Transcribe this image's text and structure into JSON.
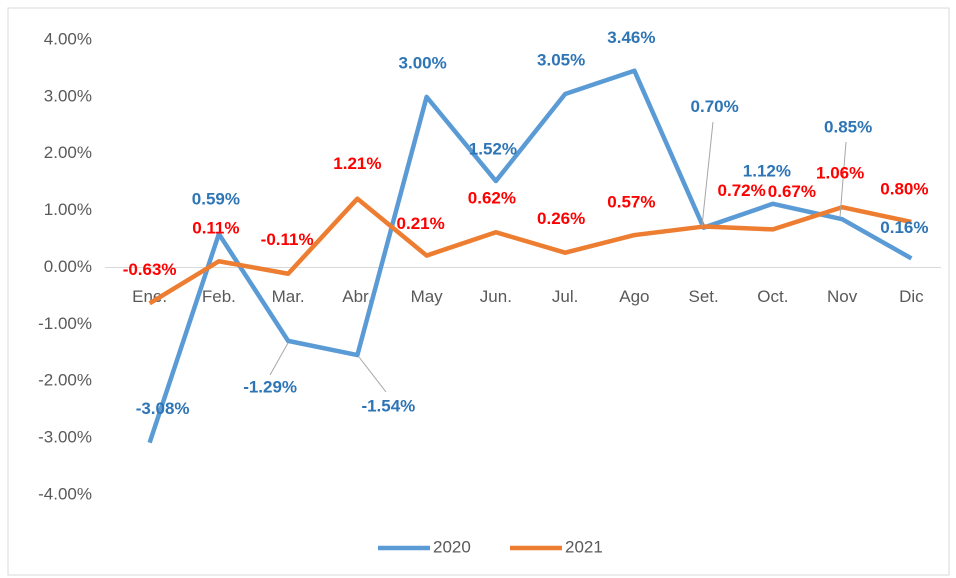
{
  "chart_data": {
    "type": "line",
    "categories": [
      "Ene.",
      "Feb.",
      "Mar.",
      "Abr.",
      "May",
      "Jun.",
      "Jul.",
      "Ago",
      "Set.",
      "Oct.",
      "Nov",
      "Dic"
    ],
    "series": [
      {
        "name": "2020",
        "color": "#5b9bd5",
        "label_color": "#2e75b6",
        "values": [
          -3.08,
          0.59,
          -1.29,
          -1.54,
          3.0,
          1.52,
          3.05,
          3.46,
          0.7,
          1.12,
          0.85,
          0.16
        ],
        "value_labels": [
          "-3.08%",
          "0.59%",
          "-1.29%",
          "-1.54%",
          "3.00%",
          "1.52%",
          "3.05%",
          "3.46%",
          "0.70%",
          "1.12%",
          "0.85%",
          "0.16%"
        ]
      },
      {
        "name": "2021",
        "color": "#ed7d31",
        "label_color": "#ff0000",
        "values": [
          -0.63,
          0.11,
          -0.11,
          1.21,
          0.21,
          0.62,
          0.26,
          0.57,
          0.72,
          0.67,
          1.06,
          0.8
        ],
        "value_labels": [
          "-0.63%",
          "0.11%",
          "-0.11%",
          "1.21%",
          "0.21%",
          "0.62%",
          "0.26%",
          "0.57%",
          "0.72%",
          "0.67%",
          "1.06%",
          "0.80%"
        ]
      }
    ],
    "ylim": [
      -4,
      4
    ],
    "yticks": [
      {
        "value": 4,
        "label": "4.00%"
      },
      {
        "value": 3,
        "label": "3.00%"
      },
      {
        "value": 2,
        "label": "2.00%"
      },
      {
        "value": 1,
        "label": "1.00%"
      },
      {
        "value": 0,
        "label": "0.00%"
      },
      {
        "value": -1,
        "label": "-1.00%"
      },
      {
        "value": -2,
        "label": "-2.00%"
      },
      {
        "value": -3,
        "label": "-3.00%"
      },
      {
        "value": -4,
        "label": "-4.00%"
      }
    ],
    "legend": "bottom"
  }
}
